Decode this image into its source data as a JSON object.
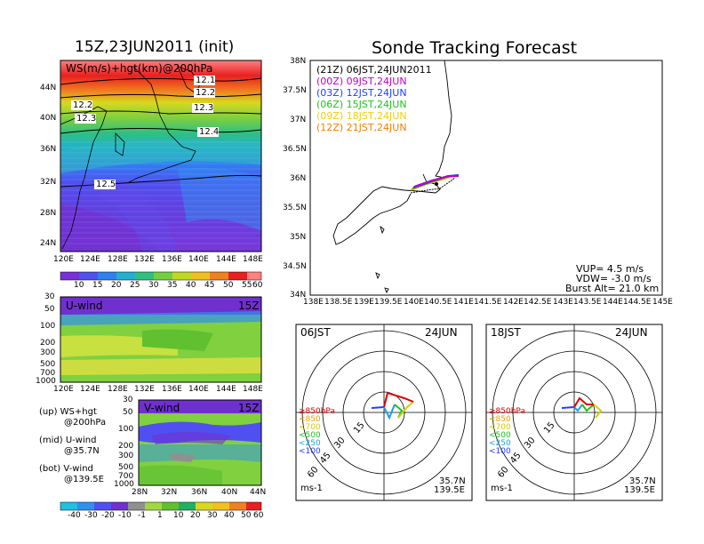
{
  "left": {
    "title": "15Z,23JUN2011 (init)",
    "ws_map": {
      "label": "WS(m/s)+hgt(km)@200hPa",
      "lat_ticks": [
        "44N",
        "40N",
        "36N",
        "32N",
        "28N",
        "24N"
      ],
      "lon_ticks": [
        "120E",
        "124E",
        "128E",
        "132E",
        "136E",
        "140E",
        "144E",
        "148E"
      ],
      "contour_labels": [
        "12.1",
        "12.2",
        "12.2",
        "12.3",
        "12.3",
        "12.4",
        "12.5"
      ],
      "colorbar": [
        "10",
        "15",
        "20",
        "25",
        "30",
        "35",
        "40",
        "45",
        "50",
        "55",
        "60"
      ]
    },
    "u_panel": {
      "label": "U-wind",
      "time": "15Z",
      "p_ticks": [
        "30",
        "50",
        "100",
        "200",
        "300",
        "500",
        "700",
        "1000"
      ],
      "lon_ticks": [
        "120E",
        "124E",
        "128E",
        "132E",
        "136E",
        "140E",
        "144E",
        "148E"
      ]
    },
    "v_panel": {
      "label": "V-wind",
      "time": "15Z",
      "p_ticks": [
        "30",
        "50",
        "100",
        "200",
        "300",
        "500",
        "700",
        "1000"
      ],
      "lat_ticks": [
        "28N",
        "32N",
        "36N",
        "40N",
        "44N"
      ]
    },
    "legend": {
      "up1": "(up) WS+hgt",
      "up2": "@200hPa",
      "mid1": "(mid) U-wind",
      "mid2": "@35.7N",
      "bot1": "(bot) V-wind",
      "bot2": "@139.5E"
    },
    "colorbar2": [
      "-40",
      "-30",
      "-20",
      "-10",
      "-1",
      "1",
      "10",
      "20",
      "30",
      "40",
      "50",
      "60"
    ]
  },
  "right": {
    "title": "Sonde Tracking Forecast",
    "track_map": {
      "lat_ticks": [
        "38N",
        "37.5N",
        "37N",
        "36.5N",
        "36N",
        "35.5N",
        "35N",
        "34.5N",
        "34N"
      ],
      "lon_ticks": [
        "138E",
        "138.5E",
        "139E",
        "139.5E",
        "140E",
        "140.5E",
        "141E",
        "141.5E",
        "142E",
        "142.5E",
        "143E",
        "143.5E",
        "144E",
        "144.5E",
        "145E"
      ],
      "legend": [
        {
          "text": "(21Z) 06JST,24JUN2011",
          "color": "#000000"
        },
        {
          "text": "(00Z) 09JST,24JUN",
          "color": "#c000c0"
        },
        {
          "text": "(03Z) 12JST,24JUN",
          "color": "#2040ff"
        },
        {
          "text": "(06Z) 15JST,24JUN",
          "color": "#20c020"
        },
        {
          "text": "(09Z) 18JST,24JUN",
          "color": "#f0d000"
        },
        {
          "text": "(12Z) 21JST,24JUN",
          "color": "#f08000"
        }
      ],
      "vup": "VUP= 4.5 m/s",
      "vdw": "VDW= -3.0 m/s",
      "burst": "Burst Alt= 21.0 km"
    },
    "hodo1": {
      "time": "06JST",
      "date": "24JUN",
      "rings": [
        "15",
        "30",
        "45",
        "60"
      ],
      "levels": [
        {
          "text": "≥850hPa",
          "color": "#e00000"
        },
        {
          "text": "<850",
          "color": "#f0a000"
        },
        {
          "text": "<700",
          "color": "#d0d000"
        },
        {
          "text": "<500",
          "color": "#20c020"
        },
        {
          "text": "<250",
          "color": "#20a0e0"
        },
        {
          "text": "<100",
          "color": "#2040ff"
        }
      ],
      "unit": "ms-1",
      "lat": "35.7N",
      "lon": "139.5E"
    },
    "hodo2": {
      "time": "18JST",
      "date": "24JUN",
      "rings": [
        "15",
        "30",
        "45",
        "60"
      ],
      "levels": [
        {
          "text": "≥850hPa",
          "color": "#e00000"
        },
        {
          "text": "<850",
          "color": "#f0a000"
        },
        {
          "text": "<700",
          "color": "#d0d000"
        },
        {
          "text": "<500",
          "color": "#20c020"
        },
        {
          "text": "<250",
          "color": "#20a0e0"
        },
        {
          "text": "<100",
          "color": "#2040ff"
        }
      ],
      "unit": "ms-1",
      "lat": "35.7N",
      "lon": "139.5E"
    }
  }
}
